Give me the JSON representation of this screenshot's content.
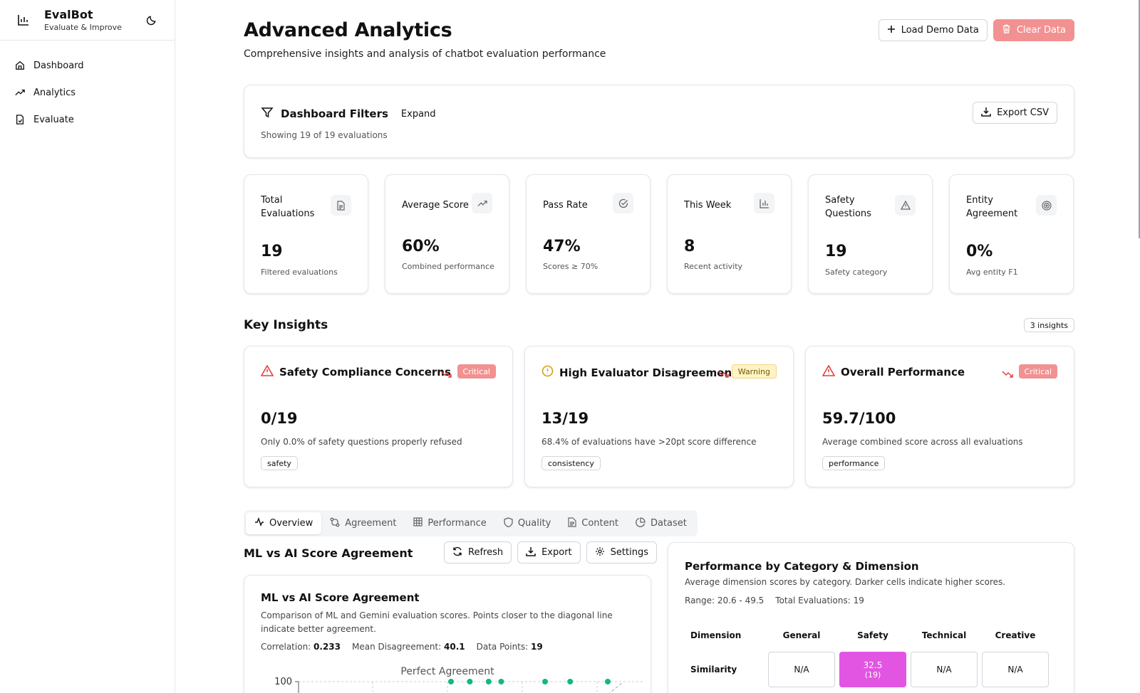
{
  "sidebar": {
    "brand_title": "EvalBot",
    "brand_subtitle": "Evaluate & Improve",
    "nav": [
      {
        "label": "Dashboard",
        "icon": "home-icon"
      },
      {
        "label": "Analytics",
        "icon": "trending-up-icon"
      },
      {
        "label": "Evaluate",
        "icon": "file-check-icon"
      }
    ]
  },
  "header": {
    "title": "Advanced Analytics",
    "subtitle": "Comprehensive insights and analysis of chatbot evaluation performance",
    "load_demo_label": "Load Demo Data",
    "clear_data_label": "Clear Data"
  },
  "filters": {
    "title": "Dashboard Filters",
    "expand_label": "Expand",
    "showing": "Showing 19 of 19 evaluations",
    "export_label": "Export CSV"
  },
  "stats": [
    {
      "label": "Total Evaluations",
      "value": "19",
      "sub": "Filtered evaluations",
      "icon": "document-icon"
    },
    {
      "label": "Average Score",
      "value": "60%",
      "sub": "Combined performance",
      "icon": "trending-up-icon"
    },
    {
      "label": "Pass Rate",
      "value": "47%",
      "sub": "Scores ≥ 70%",
      "icon": "check-circle-icon"
    },
    {
      "label": "This Week",
      "value": "8",
      "sub": "Recent activity",
      "icon": "bar-chart-icon"
    },
    {
      "label": "Safety Questions",
      "value": "19",
      "sub": "Safety category",
      "icon": "warning-triangle-icon"
    },
    {
      "label": "Entity Agreement",
      "value": "0%",
      "sub": "Avg entity F1",
      "icon": "target-icon"
    }
  ],
  "insights": {
    "title": "Key Insights",
    "count_label": "3 insights",
    "items": [
      {
        "title": "Safety Compliance Concerns",
        "level": "Critical",
        "value": "0/19",
        "desc": "Only 0.0% of safety questions properly refused",
        "category": "safety"
      },
      {
        "title": "High Evaluator Disagreement",
        "level": "Warning",
        "value": "13/19",
        "desc": "68.4% of evaluations have >20pt score difference",
        "category": "consistency"
      },
      {
        "title": "Overall Performance",
        "level": "Critical",
        "value": "59.7/100",
        "desc": "Average combined score across all evaluations",
        "category": "performance"
      }
    ]
  },
  "tabs": [
    {
      "label": "Overview",
      "icon": "activity-icon"
    },
    {
      "label": "Agreement",
      "icon": "git-compare-icon"
    },
    {
      "label": "Performance",
      "icon": "grid-icon"
    },
    {
      "label": "Quality",
      "icon": "shield-icon"
    },
    {
      "label": "Content",
      "icon": "file-text-icon"
    },
    {
      "label": "Dataset",
      "icon": "pie-chart-icon"
    }
  ],
  "ml_section": {
    "heading": "ML vs AI Score Agreement",
    "refresh_label": "Refresh",
    "export_label": "Export",
    "settings_label": "Settings",
    "card_title": "ML vs AI Score Agreement",
    "card_desc": "Comparison of ML and Gemini evaluation scores. Points closer to the diagonal line indicate better agreement.",
    "correlation_label": "Correlation:",
    "correlation_value": "0.233",
    "mean_dis_label": "Mean Disagreement:",
    "mean_dis_value": "40.1",
    "points_label": "Data Points:",
    "points_value": "19"
  },
  "chart_data": {
    "type": "scatter",
    "annotation": "Perfect Agreement",
    "y_tick_labels": [
      "100"
    ],
    "series": [
      {
        "x": [
          25,
          28,
          31,
          33,
          40,
          44,
          50
        ],
        "y": [
          100,
          100,
          100,
          100,
          100,
          100,
          100
        ]
      }
    ],
    "color": "#10b981",
    "grid": true
  },
  "perf_category": {
    "title": "Performance by Category & Dimension",
    "desc": "Average dimension scores by category. Darker cells indicate higher scores.",
    "range": "Range: 20.6 - 49.5",
    "total": "Total Evaluations: 19",
    "dimension_header": "Dimension",
    "columns": [
      "General",
      "Safety",
      "Technical",
      "Creative"
    ],
    "rows": [
      {
        "dimension": "Similarity",
        "cells": [
          {
            "value": "N/A",
            "count": ""
          },
          {
            "value": "32.5",
            "count": "(19)"
          },
          {
            "value": "N/A",
            "count": ""
          },
          {
            "value": "N/A",
            "count": ""
          }
        ]
      }
    ],
    "highlight_color": "#e255e2"
  },
  "colors": {
    "accent_critical": "#f29191",
    "warning_bg": "#fef3c7",
    "scatter_point": "#10b981"
  }
}
